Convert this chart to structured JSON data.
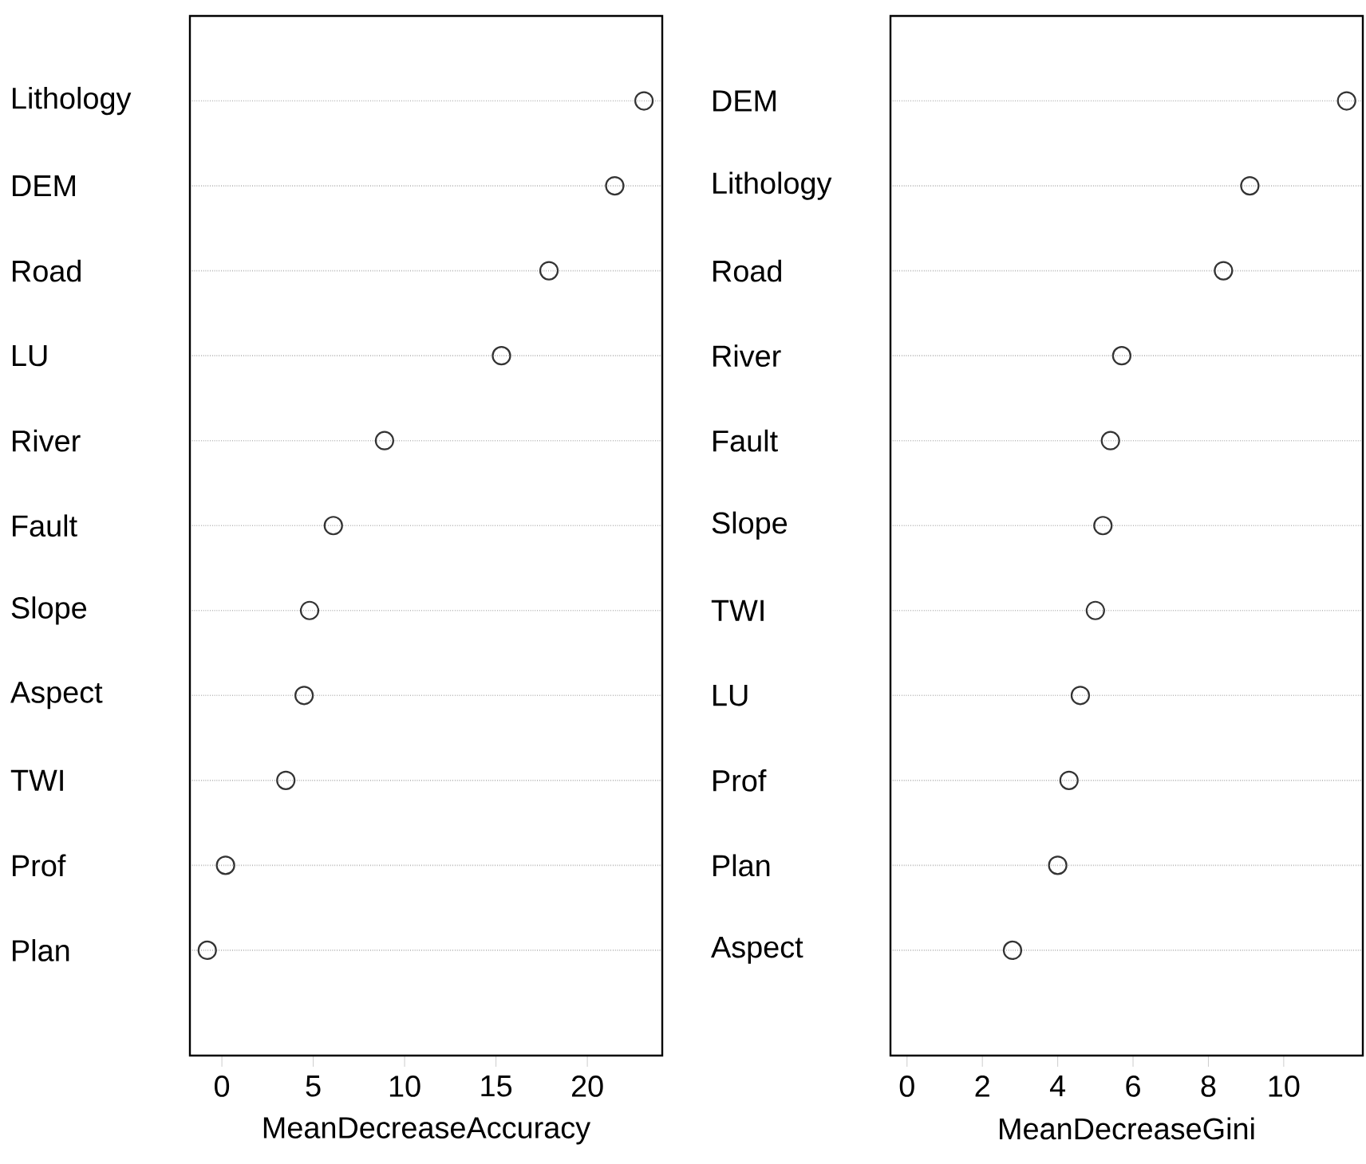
{
  "chart_data": [
    {
      "type": "scatter",
      "orientation": "horizontal",
      "categories": [
        "Lithology",
        "DEM",
        "Road",
        "LU",
        "River",
        "Fault",
        "Slope",
        "Aspect",
        "TWI",
        "Prof",
        "Plan"
      ],
      "values": [
        23.1,
        21.5,
        17.9,
        15.3,
        8.9,
        6.1,
        4.8,
        4.5,
        3.5,
        0.2,
        -0.8
      ],
      "color": "#333333",
      "marker": "circle",
      "grid": "y",
      "xlim": [
        -1.75,
        24.1
      ],
      "xticks": [
        0,
        5,
        10,
        15,
        20
      ],
      "xlabel": "MeanDecreaseAccuracy"
    },
    {
      "type": "scatter",
      "orientation": "horizontal",
      "categories": [
        "DEM",
        "Lithology",
        "Road",
        "River",
        "Fault",
        "Slope",
        "TWI",
        "LU",
        "Prof",
        "Plan",
        "Aspect"
      ],
      "values": [
        11.67,
        9.1,
        8.4,
        5.7,
        5.4,
        5.2,
        5.0,
        4.6,
        4.3,
        4.0,
        2.8
      ],
      "color": "#333333",
      "marker": "circle",
      "grid": "y",
      "xlim": [
        -0.44,
        12.1
      ],
      "xticks": [
        0,
        2,
        4,
        6,
        8,
        10
      ],
      "xlabel": "MeanDecreaseGini"
    }
  ]
}
